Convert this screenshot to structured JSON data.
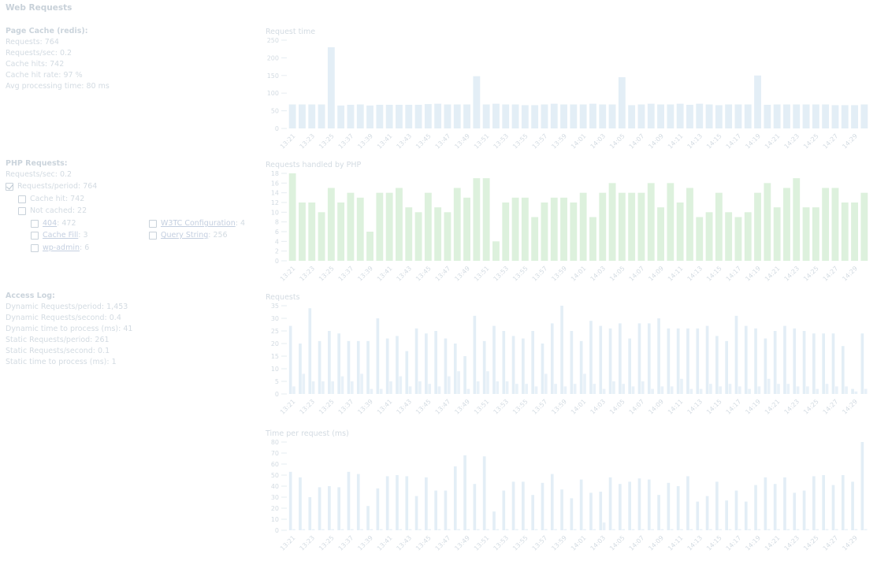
{
  "title": "Web Requests",
  "page_cache": {
    "title": "Page Cache (redis):",
    "lines": [
      "Requests: 764",
      "Requests/sec: 0.2",
      "Cache hits: 742",
      "Cache hit rate: 97 %",
      "Avg processing time: 80 ms"
    ]
  },
  "php_requests": {
    "title": "PHP Requests:",
    "rate": "Requests/sec: 0.2",
    "items": [
      {
        "text": "Requests/period: 764",
        "checked": true
      },
      {
        "text": "Cache hit: 742",
        "checked": false
      },
      {
        "text": "Not cached: 22",
        "checked": false
      },
      {
        "link": "404",
        "suffix": ": 472",
        "checked": false
      },
      {
        "link": "Cache Fill",
        "suffix": ": 3",
        "checked": false
      },
      {
        "link": "wp-admin",
        "suffix": ": 6",
        "checked": false
      },
      {
        "link": "W3TC Configuration",
        "suffix": ": 4",
        "checked": false
      },
      {
        "link": "Query String",
        "suffix": ": 256",
        "checked": false
      }
    ]
  },
  "access_log": {
    "title": "Access Log:",
    "lines": [
      "Dynamic Requests/period: 1,453",
      "Dynamic Requests/second: 0.4",
      "Dynamic time to process (ms): 41",
      "Static Requests/period: 261",
      "Static Requests/second: 0.1",
      "Static time to process (ms): 1"
    ]
  },
  "chart_data": [
    {
      "type": "bar",
      "title": "Request time",
      "color": "#e3eef6",
      "categories": [
        "13:21",
        null,
        "13:23",
        null,
        "13:25",
        null,
        "13:37",
        null,
        "13:39",
        null,
        "13:41",
        null,
        "13:43",
        null,
        "13:45",
        null,
        "13:47",
        null,
        "13:49",
        null,
        "13:51",
        null,
        "13:53",
        null,
        "13:55",
        null,
        "13:57",
        null,
        "13:59",
        null,
        "14:01",
        null,
        "14:03",
        null,
        "14:05",
        null,
        "14:07",
        null,
        "14:09",
        null,
        "14:11",
        null,
        "14:13",
        null,
        "14:15",
        null,
        "14:17",
        null,
        "14:19",
        null,
        "14:21",
        null,
        "14:23",
        null,
        "14:25",
        null,
        "14:27",
        null,
        "14:29",
        null
      ],
      "values": [
        68,
        68,
        68,
        68,
        230,
        65,
        67,
        68,
        65,
        67,
        67,
        67,
        67,
        67,
        69,
        70,
        68,
        68,
        68,
        148,
        68,
        70,
        68,
        68,
        66,
        66,
        68,
        70,
        68,
        68,
        68,
        70,
        68,
        68,
        145,
        66,
        68,
        70,
        68,
        68,
        70,
        67,
        70,
        68,
        66,
        68,
        68,
        68,
        150,
        67,
        68,
        68,
        68,
        68,
        68,
        68,
        66,
        66,
        66,
        68
      ],
      "ylim": [
        0,
        250
      ],
      "yticks": [
        0,
        50,
        100,
        150,
        200,
        250
      ]
    },
    {
      "type": "bar",
      "title": "Requests handled by PHP",
      "color": "#ddf1dd",
      "categories": [
        "13:21",
        null,
        "13:23",
        null,
        "13:25",
        null,
        "13:37",
        null,
        "13:39",
        null,
        "13:41",
        null,
        "13:43",
        null,
        "13:45",
        null,
        "13:47",
        null,
        "13:49",
        null,
        "13:51",
        null,
        "13:53",
        null,
        "13:55",
        null,
        "13:57",
        null,
        "13:59",
        null,
        "14:01",
        null,
        "14:03",
        null,
        "14:05",
        null,
        "14:07",
        null,
        "14:09",
        null,
        "14:11",
        null,
        "14:13",
        null,
        "14:15",
        null,
        "14:17",
        null,
        "14:19",
        null,
        "14:21",
        null,
        "14:23",
        null,
        "14:25",
        null,
        "14:27",
        null,
        "14:29",
        null
      ],
      "values": [
        18,
        12,
        12,
        10,
        15,
        12,
        14,
        13,
        6,
        14,
        14,
        15,
        11,
        10,
        14,
        11,
        10,
        15,
        13,
        17,
        17,
        4,
        12,
        13,
        13,
        9,
        12,
        13,
        13,
        12,
        14,
        9,
        14,
        16,
        14,
        14,
        14,
        16,
        11,
        16,
        12,
        15,
        9,
        10,
        14,
        10,
        9,
        10,
        14,
        16,
        11,
        15,
        17,
        11,
        11,
        15,
        15,
        12,
        12,
        14
      ],
      "ylim": [
        0,
        18
      ],
      "yticks": [
        0,
        2,
        4,
        6,
        8,
        10,
        12,
        14,
        16,
        18
      ]
    },
    {
      "type": "grouped-bar",
      "title": "Requests",
      "categories": [
        "13:21",
        null,
        "13:23",
        null,
        "13:25",
        null,
        "13:37",
        null,
        "13:39",
        null,
        "13:41",
        null,
        "13:43",
        null,
        "13:45",
        null,
        "13:47",
        null,
        "13:49",
        null,
        "13:51",
        null,
        "13:53",
        null,
        "13:55",
        null,
        "13:57",
        null,
        "13:59",
        null,
        "14:01",
        null,
        "14:03",
        null,
        "14:05",
        null,
        "14:07",
        null,
        "14:09",
        null,
        "14:11",
        null,
        "14:13",
        null,
        "14:15",
        null,
        "14:17",
        null,
        "14:19",
        null,
        "14:21",
        null,
        "14:23",
        null,
        "14:25",
        null,
        "14:27",
        null,
        "14:29",
        null
      ],
      "series": [
        {
          "color": "#e3eef6",
          "values": [
            27,
            20,
            34,
            21,
            25,
            24,
            21,
            21,
            21,
            30,
            22,
            23,
            17,
            26,
            24,
            25,
            22,
            20,
            15,
            31,
            21,
            27,
            25,
            23,
            22,
            25,
            20,
            28,
            35,
            25,
            21,
            29,
            27,
            26,
            28,
            22,
            28,
            28,
            30,
            26,
            26,
            26,
            26,
            27,
            23,
            21,
            31,
            27,
            26,
            22,
            25,
            27,
            26,
            25,
            24,
            24,
            24,
            19,
            2,
            24
          ]
        },
        {
          "color": "#e8f1f8",
          "values": [
            3,
            8,
            5,
            5,
            5,
            7,
            5,
            8,
            2,
            2,
            5,
            7,
            3,
            5,
            4,
            3,
            7,
            9,
            2,
            5,
            9,
            5,
            5,
            4,
            4,
            3,
            8,
            4,
            3,
            4,
            8,
            4,
            2,
            5,
            4,
            3,
            5,
            2,
            3,
            3,
            6,
            2,
            2,
            4,
            3,
            4,
            3,
            2,
            3,
            6,
            4,
            4,
            3,
            3,
            2,
            4,
            3,
            3,
            1,
            2
          ]
        }
      ],
      "ylim": [
        0,
        35
      ],
      "yticks": [
        0,
        5,
        10,
        15,
        20,
        25,
        30,
        35
      ]
    },
    {
      "type": "grouped-bar",
      "title": "Time per request (ms)",
      "categories": [
        "13:21",
        null,
        "13:23",
        null,
        "13:25",
        null,
        "13:37",
        null,
        "13:39",
        null,
        "13:41",
        null,
        "13:43",
        null,
        "13:45",
        null,
        "13:47",
        null,
        "13:49",
        null,
        "13:51",
        null,
        "13:53",
        null,
        "13:55",
        null,
        "13:57",
        null,
        "13:59",
        null,
        "14:01",
        null,
        "14:03",
        null,
        "14:05",
        null,
        "14:07",
        null,
        "14:09",
        null,
        "14:11",
        null,
        "14:13",
        null,
        "14:15",
        null,
        "14:17",
        null,
        "14:19",
        null,
        "14:21",
        null,
        "14:23",
        null,
        "14:25",
        null,
        "14:27",
        null,
        "14:29",
        null
      ],
      "series": [
        {
          "color": "#e3eef6",
          "values": [
            53,
            48,
            30,
            39,
            40,
            39,
            53,
            51,
            22,
            38,
            49,
            50,
            49,
            31,
            48,
            36,
            36,
            58,
            68,
            42,
            67,
            17,
            36,
            44,
            44,
            32,
            43,
            51,
            37,
            29,
            46,
            34,
            35,
            48,
            42,
            44,
            47,
            46,
            32,
            43,
            40,
            49,
            26,
            31,
            44,
            27,
            36,
            26,
            41,
            48,
            42,
            48,
            34,
            36,
            49,
            50,
            41,
            50,
            44,
            80
          ]
        },
        {
          "color": "#e8f1f8",
          "values": [
            1,
            1,
            1,
            1,
            1,
            1,
            1,
            1,
            1,
            1,
            1,
            1,
            1,
            1,
            1,
            1,
            1,
            1,
            1,
            1,
            1,
            1,
            1,
            1,
            1,
            1,
            1,
            1,
            1,
            1,
            1,
            1,
            7,
            1,
            1,
            1,
            1,
            1,
            1,
            1,
            1,
            1,
            1,
            1,
            1,
            1,
            1,
            1,
            1,
            1,
            1,
            1,
            1,
            1,
            1,
            1,
            1,
            1,
            1,
            1
          ]
        }
      ],
      "ylim": [
        0,
        80
      ],
      "yticks": [
        0,
        10,
        20,
        30,
        40,
        50,
        60,
        70,
        80
      ]
    }
  ]
}
